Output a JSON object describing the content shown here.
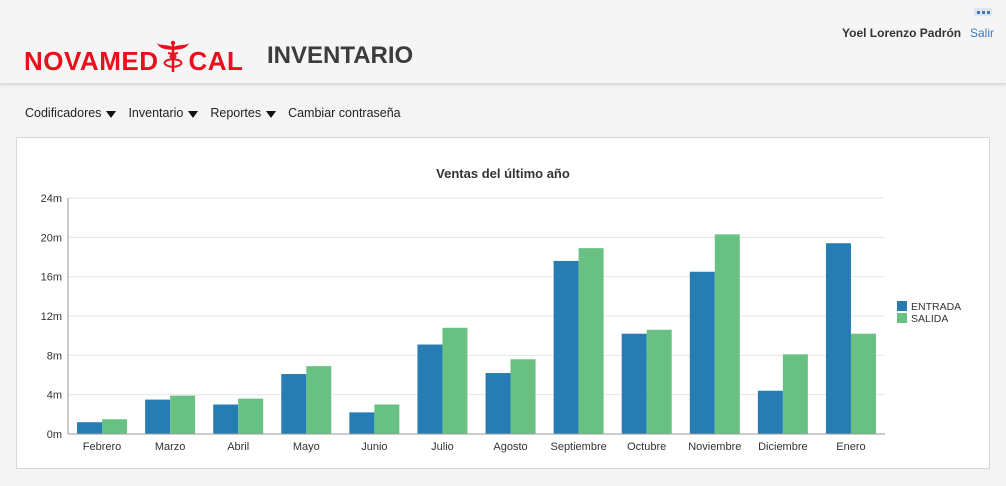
{
  "header": {
    "logo_text": "NOVAMEDICAL",
    "app_title": "INVENTARIO",
    "user_name": "Yoel Lorenzo Padrón",
    "logout_label": "Salir",
    "brand_color": "#e8101c"
  },
  "nav": {
    "items": [
      {
        "label": "Codificadores",
        "has_dropdown": true
      },
      {
        "label": "Inventario",
        "has_dropdown": true
      },
      {
        "label": "Reportes",
        "has_dropdown": true
      },
      {
        "label": "Cambiar contraseña",
        "has_dropdown": false
      }
    ]
  },
  "chart_data": {
    "type": "bar",
    "title": "Ventas del último año",
    "categories": [
      "Febrero",
      "Marzo",
      "Abril",
      "Mayo",
      "Junio",
      "Julio",
      "Agosto",
      "Septiembre",
      "Octubre",
      "Noviembre",
      "Diciembre",
      "Enero"
    ],
    "series": [
      {
        "name": "ENTRADA",
        "color": "#267db3",
        "values": [
          1.2,
          3.5,
          3.0,
          6.1,
          2.2,
          9.1,
          6.2,
          17.6,
          10.2,
          16.5,
          4.4,
          19.4
        ]
      },
      {
        "name": "SALIDA",
        "color": "#68c182",
        "values": [
          1.5,
          3.9,
          3.6,
          6.9,
          3.0,
          10.8,
          7.6,
          18.9,
          10.6,
          20.3,
          8.1,
          10.2
        ]
      }
    ],
    "ylim": [
      0,
      24
    ],
    "yticks": [
      "0m",
      "4m",
      "8m",
      "12m",
      "16m",
      "20m",
      "24m"
    ],
    "ytick_values": [
      0,
      4,
      8,
      12,
      16,
      20,
      24
    ],
    "grid": true,
    "legend_position": "right"
  }
}
